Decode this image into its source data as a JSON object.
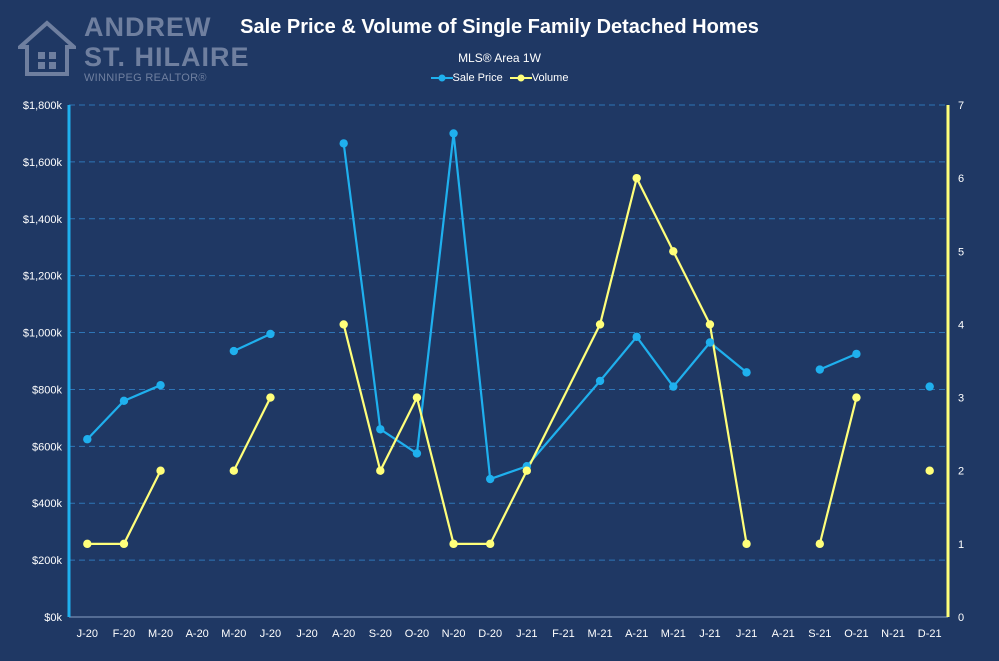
{
  "logo": {
    "line1": "ANDREW",
    "line2": "ST. HILAIRE",
    "line3": "WINNIPEG REALTOR®"
  },
  "colors": {
    "background": "#1f3864",
    "sale_price": "#1fb0ee",
    "volume": "#ffff7a",
    "grid": "#2e75b6",
    "text": "#ffffff",
    "logo": "#6f7f9f"
  },
  "chart_data": {
    "type": "line",
    "title": "Sale Price & Volume of Single Family Detached Homes",
    "subtitle": "MLS® Area 1W",
    "legend_position": "top",
    "grid": true,
    "categories": [
      "J-20",
      "F-20",
      "M-20",
      "A-20",
      "M-20",
      "J-20",
      "J-20",
      "A-20",
      "S-20",
      "O-20",
      "N-20",
      "D-20",
      "J-21",
      "F-21",
      "M-21",
      "A-21",
      "M-21",
      "J-21",
      "J-21",
      "A-21",
      "S-21",
      "O-21",
      "N-21",
      "D-21"
    ],
    "y_left": {
      "min": 0,
      "max": 1800,
      "step": 200,
      "tick_labels": [
        "$0k",
        "$200k",
        "$400k",
        "$600k",
        "$800k",
        "$1,000k",
        "$1,200k",
        "$1,400k",
        "$1,600k",
        "$1,800k"
      ]
    },
    "y_right": {
      "min": 0,
      "max": 7,
      "step": 1,
      "tick_labels": [
        "0",
        "1",
        "2",
        "3",
        "4",
        "5",
        "6",
        "7"
      ]
    },
    "series": [
      {
        "name": "Sale Price",
        "axis": "left",
        "values": [
          625,
          760,
          815,
          null,
          935,
          995,
          null,
          1665,
          660,
          575,
          1700,
          485,
          530,
          null,
          830,
          985,
          810,
          965,
          860,
          null,
          870,
          925,
          null,
          810
        ],
        "segments": [
          [
            0,
            1
          ],
          [
            1,
            2
          ],
          [
            4,
            5
          ],
          [
            7,
            8
          ],
          [
            8,
            9
          ],
          [
            9,
            10
          ],
          [
            10,
            11
          ],
          [
            11,
            12
          ],
          [
            12,
            14
          ],
          [
            14,
            15
          ],
          [
            15,
            16
          ],
          [
            16,
            17
          ],
          [
            17,
            18
          ],
          [
            20,
            21
          ]
        ]
      },
      {
        "name": "Volume",
        "axis": "right",
        "values": [
          1,
          1,
          2,
          null,
          2,
          3,
          null,
          4,
          2,
          3,
          1,
          1,
          2,
          null,
          4,
          6,
          5,
          4,
          1,
          null,
          1,
          3,
          null,
          2
        ],
        "segments": [
          [
            0,
            1
          ],
          [
            1,
            2
          ],
          [
            4,
            5
          ],
          [
            7,
            8
          ],
          [
            8,
            9
          ],
          [
            9,
            10
          ],
          [
            10,
            11
          ],
          [
            11,
            12
          ],
          [
            12,
            14
          ],
          [
            14,
            15
          ],
          [
            15,
            16
          ],
          [
            16,
            17
          ],
          [
            17,
            18
          ],
          [
            20,
            21
          ]
        ]
      }
    ]
  }
}
